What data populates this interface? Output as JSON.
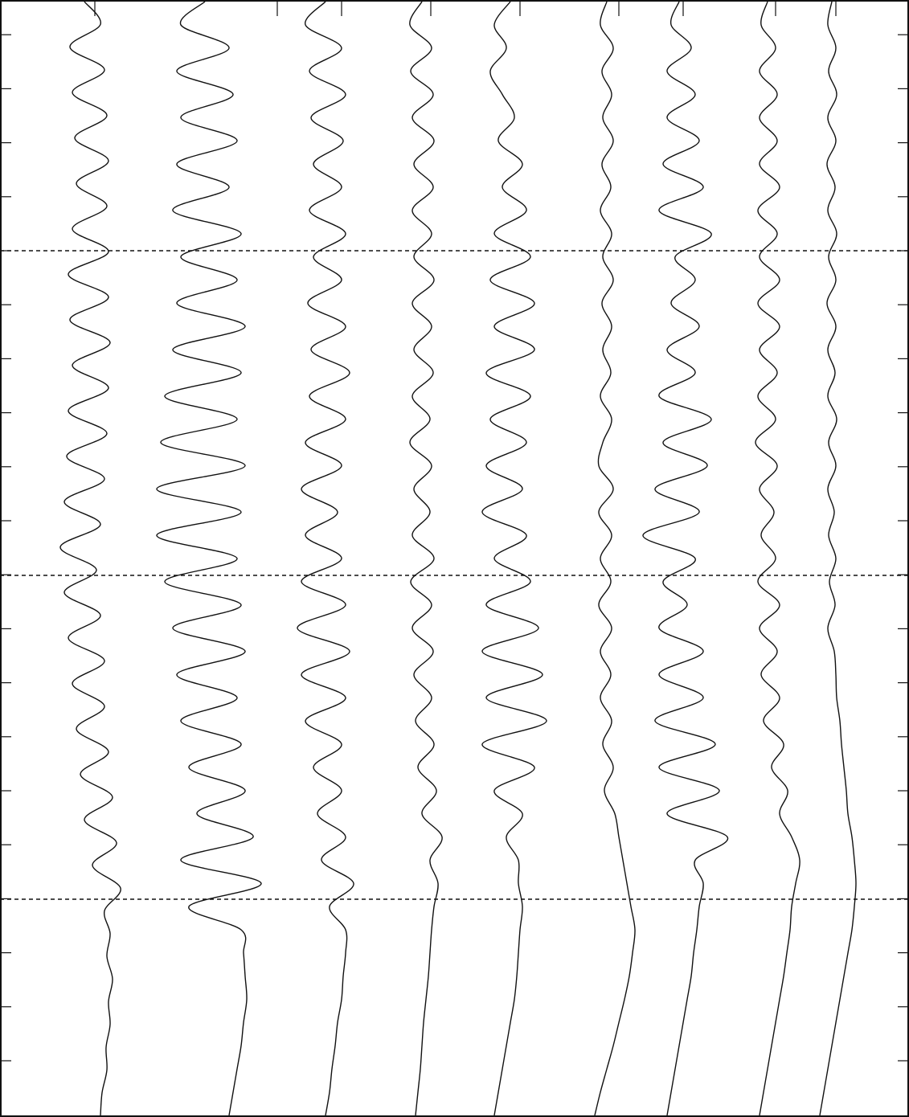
{
  "chart_data": {
    "type": "wiggle",
    "color": "#111111",
    "series": [
      {
        "values": [
          0,
          20,
          -18,
          25,
          -15,
          28,
          -12,
          30,
          -10,
          28,
          -15,
          30,
          -20,
          30,
          -18,
          32,
          -15,
          30,
          -20,
          28,
          -22,
          25,
          -25,
          20,
          -30,
          15,
          -25,
          20,
          -20,
          25,
          -15,
          25,
          -10,
          30,
          -5,
          35,
          0,
          40,
          10,
          45,
          25,
          32,
          28,
          35,
          30,
          32,
          27,
          28,
          22,
          20
        ]
      },
      {
        "values": [
          0,
          -30,
          30,
          -35,
          35,
          -30,
          40,
          -35,
          30,
          -40,
          45,
          -30,
          40,
          -35,
          50,
          -40,
          45,
          -50,
          40,
          -55,
          50,
          -60,
          45,
          -60,
          40,
          -50,
          45,
          -40,
          50,
          -35,
          40,
          -30,
          45,
          -20,
          50,
          -10,
          60,
          -30,
          70,
          -20,
          45,
          48,
          50,
          52,
          48,
          45,
          40,
          35,
          30
        ]
      },
      {
        "values": [
          0,
          -25,
          20,
          -20,
          25,
          -18,
          22,
          -15,
          20,
          -20,
          25,
          -15,
          20,
          -22,
          25,
          -18,
          30,
          -20,
          25,
          -25,
          20,
          -30,
          15,
          -25,
          20,
          -30,
          25,
          -35,
          30,
          -30,
          25,
          -25,
          20,
          -15,
          20,
          -10,
          25,
          -5,
          35,
          5,
          25,
          25,
          22,
          20,
          15,
          12,
          8,
          5,
          0
        ]
      },
      {
        "values": [
          0,
          -15,
          12,
          -14,
          14,
          -12,
          15,
          -10,
          14,
          -12,
          12,
          -10,
          15,
          -12,
          12,
          -10,
          14,
          -12,
          10,
          -15,
          12,
          -10,
          10,
          -12,
          15,
          -14,
          12,
          -12,
          14,
          -10,
          12,
          -8,
          15,
          -5,
          18,
          0,
          25,
          10,
          20,
          15,
          12,
          10,
          8,
          5,
          2,
          0,
          -2,
          -5,
          -8
        ]
      },
      {
        "values": [
          0,
          -20,
          -5,
          -25,
          -10,
          5,
          -15,
          15,
          -10,
          20,
          -20,
          25,
          -25,
          30,
          -20,
          30,
          -30,
          25,
          -25,
          20,
          -30,
          15,
          -35,
          20,
          -20,
          25,
          -30,
          35,
          -35,
          40,
          -30,
          45,
          -35,
          30,
          -20,
          15,
          -5,
          10,
          10,
          15,
          12,
          10,
          8,
          5,
          0,
          -5,
          -10,
          -15,
          -20
        ]
      },
      {
        "values": [
          0,
          -8,
          8,
          -6,
          6,
          -5,
          8,
          -6,
          5,
          -8,
          6,
          -5,
          8,
          -6,
          6,
          -5,
          5,
          -8,
          6,
          -5,
          -10,
          8,
          -10,
          6,
          -8,
          5,
          -10,
          6,
          -8,
          5,
          -8,
          6,
          -5,
          8,
          -3,
          10,
          15,
          20,
          25,
          30,
          35,
          32,
          28,
          22,
          15,
          8,
          0,
          -8,
          -15
        ]
      },
      {
        "values": [
          0,
          -10,
          15,
          -15,
          20,
          -15,
          25,
          -20,
          30,
          -25,
          40,
          -5,
          20,
          -10,
          25,
          -15,
          20,
          -25,
          40,
          -20,
          35,
          -30,
          25,
          -45,
          20,
          -20,
          10,
          -25,
          30,
          -25,
          30,
          -30,
          45,
          -25,
          50,
          -15,
          60,
          20,
          30,
          25,
          22,
          18,
          15,
          10,
          5,
          0,
          -5,
          -10,
          -15
        ]
      },
      {
        "values": [
          0,
          -8,
          10,
          -10,
          12,
          -10,
          12,
          -10,
          15,
          -12,
          12,
          -10,
          15,
          -12,
          15,
          -10,
          12,
          -12,
          10,
          -15,
          12,
          -10,
          8,
          -8,
          10,
          -12,
          15,
          -10,
          12,
          -8,
          15,
          -5,
          20,
          5,
          25,
          15,
          30,
          40,
          35,
          30,
          28,
          24,
          20,
          15,
          10,
          5,
          0,
          -5,
          -10
        ]
      },
      {
        "values": [
          0,
          -5,
          5,
          -4,
          6,
          -5,
          5,
          -6,
          4,
          -5,
          6,
          -4,
          5,
          -6,
          5,
          -5,
          4,
          -5,
          6,
          -4,
          5,
          -5,
          3,
          -4,
          5,
          -3,
          4,
          -5,
          3,
          5,
          6,
          10,
          12,
          15,
          18,
          20,
          25,
          28,
          30,
          28,
          25,
          20,
          15,
          10,
          5,
          0,
          -5,
          -10,
          -15
        ]
      }
    ]
  }
}
